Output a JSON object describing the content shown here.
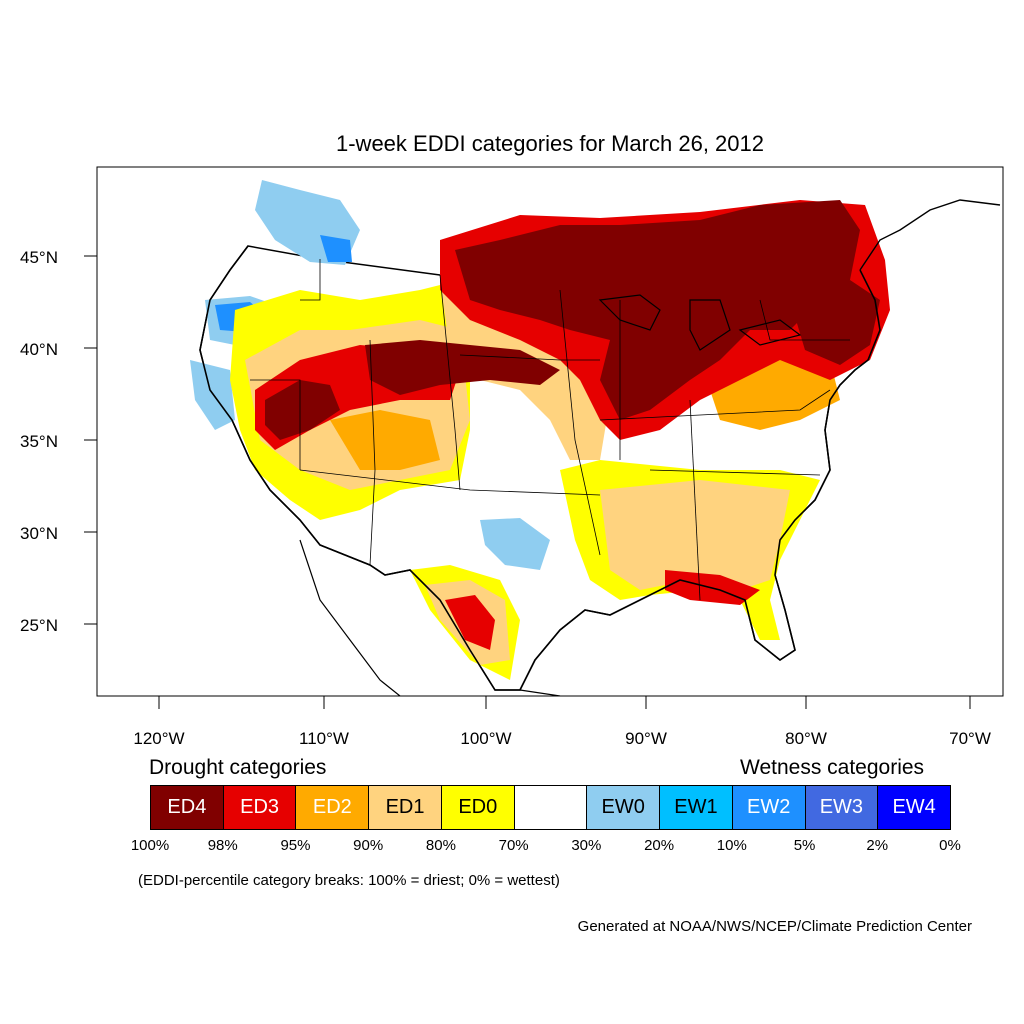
{
  "title": "1-week EDDI categories for March 26, 2012",
  "lat_labels": [
    "45°N",
    "40°N",
    "35°N",
    "30°N",
    "25°N"
  ],
  "lon_labels": [
    "120°W",
    "110°W",
    "100°W",
    "90°W",
    "80°W",
    "70°W"
  ],
  "legend": {
    "drought_heading": "Drought categories",
    "wetness_heading": "Wetness categories",
    "categories": [
      {
        "label": "ED4",
        "color": "#800000"
      },
      {
        "label": "ED3",
        "color": "#e60000"
      },
      {
        "label": "ED2",
        "color": "#ffaa00"
      },
      {
        "label": "ED1",
        "color": "#ffd37f"
      },
      {
        "label": "ED0",
        "color": "#ffff00"
      },
      {
        "label": "",
        "color": "#ffffff"
      },
      {
        "label": "EW0",
        "color": "#8fcdf0"
      },
      {
        "label": "EW1",
        "color": "#00bfff"
      },
      {
        "label": "EW2",
        "color": "#1e90ff"
      },
      {
        "label": "EW3",
        "color": "#4169e1"
      },
      {
        "label": "EW4",
        "color": "#0000ff"
      }
    ],
    "breaks": [
      "100%",
      "98%",
      "95%",
      "90%",
      "80%",
      "70%",
      "30%",
      "20%",
      "10%",
      "5%",
      "2%",
      "0%"
    ]
  },
  "note": "(EDDI-percentile category breaks: 100% = driest; 0% = wettest)",
  "credit": "Generated at NOAA/NWS/NCEP/Climate Prediction Center"
}
